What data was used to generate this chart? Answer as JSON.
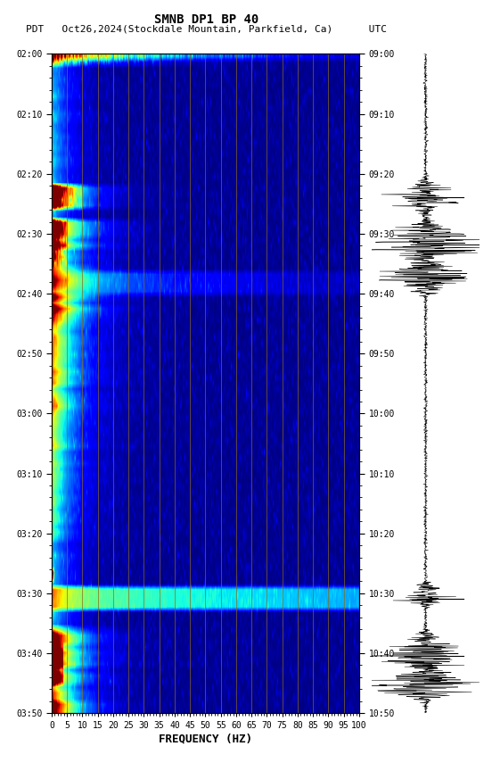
{
  "title_line1": "SMNB DP1 BP 40",
  "title_line2": "PDT   Oct26,2024(Stockdale Mountain, Parkfield, Ca)      UTC",
  "xlabel": "FREQUENCY (HZ)",
  "freq_ticks": [
    0,
    5,
    10,
    15,
    20,
    25,
    30,
    35,
    40,
    45,
    50,
    55,
    60,
    65,
    70,
    75,
    80,
    85,
    90,
    95,
    100
  ],
  "left_yticks_labels": [
    "02:00",
    "02:10",
    "02:20",
    "02:30",
    "02:40",
    "02:50",
    "03:00",
    "03:10",
    "03:20",
    "03:30",
    "03:40",
    "03:50"
  ],
  "right_yticks_labels": [
    "09:00",
    "09:10",
    "09:20",
    "09:30",
    "09:40",
    "09:50",
    "10:00",
    "10:10",
    "10:20",
    "10:30",
    "10:40",
    "10:50"
  ],
  "bg_color": "#ffffff",
  "grid_color": "#8B6914",
  "vertical_grid_freqs": [
    5,
    10,
    15,
    20,
    25,
    30,
    35,
    40,
    45,
    50,
    55,
    60,
    65,
    70,
    75,
    80,
    85,
    90,
    95,
    100
  ],
  "n_time": 115,
  "n_freq": 400,
  "seed": 42,
  "font_size_title": 10,
  "font_size_labels": 8,
  "font_size_ticks": 7
}
